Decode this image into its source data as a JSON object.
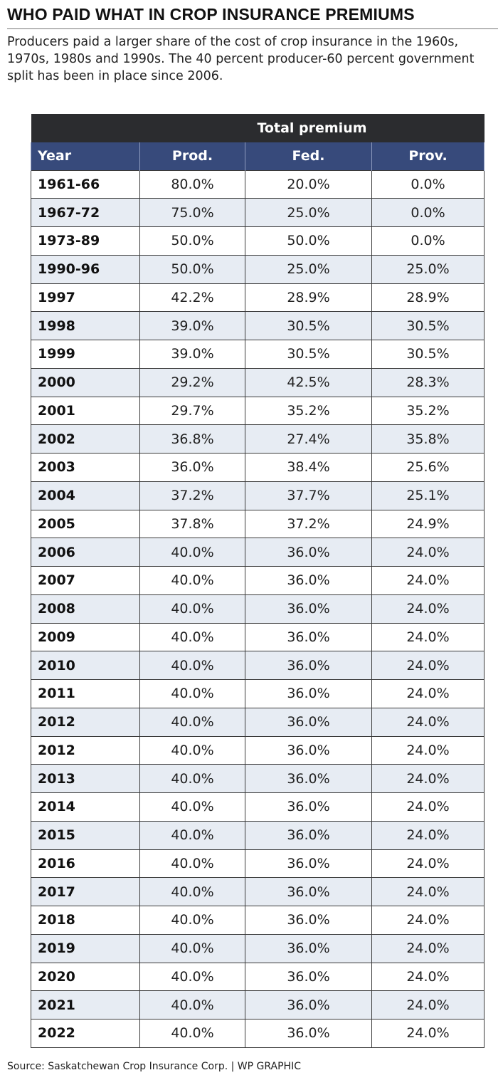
{
  "header": {
    "title": "WHO PAID WHAT IN CROP INSURANCE PREMIUMS",
    "subtitle": "Producers paid a larger share of the cost of crop insurance in the 1960s, 1970s, 1980s and 1990s. The 40 percent producer-60 percent government split has been in place since 2006."
  },
  "footer": {
    "source": "Source: Saskatchewan Crop Insurance Corp.  |  WP GRAPHIC"
  },
  "colors": {
    "super_header": "#2b2c2f",
    "column_header": "#374a7b",
    "stripe": "#e7ecf3"
  },
  "chart_data": {
    "type": "table",
    "super_header": "Total premium",
    "columns": [
      "Year",
      "Prod.",
      "Fed.",
      "Prov."
    ],
    "rows": [
      [
        "1961-66",
        "80.0%",
        "20.0%",
        "0.0%"
      ],
      [
        "1967-72",
        "75.0%",
        "25.0%",
        "0.0%"
      ],
      [
        "1973-89",
        "50.0%",
        "50.0%",
        "0.0%"
      ],
      [
        "1990-96",
        "50.0%",
        "25.0%",
        "25.0%"
      ],
      [
        "1997",
        "42.2%",
        "28.9%",
        "28.9%"
      ],
      [
        "1998",
        "39.0%",
        "30.5%",
        "30.5%"
      ],
      [
        "1999",
        "39.0%",
        "30.5%",
        "30.5%"
      ],
      [
        "2000",
        "29.2%",
        "42.5%",
        "28.3%"
      ],
      [
        "2001",
        "29.7%",
        "35.2%",
        "35.2%"
      ],
      [
        "2002",
        "36.8%",
        "27.4%",
        "35.8%"
      ],
      [
        "2003",
        "36.0%",
        "38.4%",
        "25.6%"
      ],
      [
        "2004",
        "37.2%",
        "37.7%",
        "25.1%"
      ],
      [
        "2005",
        "37.8%",
        "37.2%",
        "24.9%"
      ],
      [
        "2006",
        "40.0%",
        "36.0%",
        "24.0%"
      ],
      [
        "2007",
        "40.0%",
        "36.0%",
        "24.0%"
      ],
      [
        "2008",
        "40.0%",
        "36.0%",
        "24.0%"
      ],
      [
        "2009",
        "40.0%",
        "36.0%",
        "24.0%"
      ],
      [
        "2010",
        "40.0%",
        "36.0%",
        "24.0%"
      ],
      [
        "2011",
        "40.0%",
        "36.0%",
        "24.0%"
      ],
      [
        "2012",
        "40.0%",
        "36.0%",
        "24.0%"
      ],
      [
        "2012",
        "40.0%",
        "36.0%",
        "24.0%"
      ],
      [
        "2013",
        "40.0%",
        "36.0%",
        "24.0%"
      ],
      [
        "2014",
        "40.0%",
        "36.0%",
        "24.0%"
      ],
      [
        "2015",
        "40.0%",
        "36.0%",
        "24.0%"
      ],
      [
        "2016",
        "40.0%",
        "36.0%",
        "24.0%"
      ],
      [
        "2017",
        "40.0%",
        "36.0%",
        "24.0%"
      ],
      [
        "2018",
        "40.0%",
        "36.0%",
        "24.0%"
      ],
      [
        "2019",
        "40.0%",
        "36.0%",
        "24.0%"
      ],
      [
        "2020",
        "40.0%",
        "36.0%",
        "24.0%"
      ],
      [
        "2021",
        "40.0%",
        "36.0%",
        "24.0%"
      ],
      [
        "2022",
        "40.0%",
        "36.0%",
        "24.0%"
      ]
    ]
  }
}
